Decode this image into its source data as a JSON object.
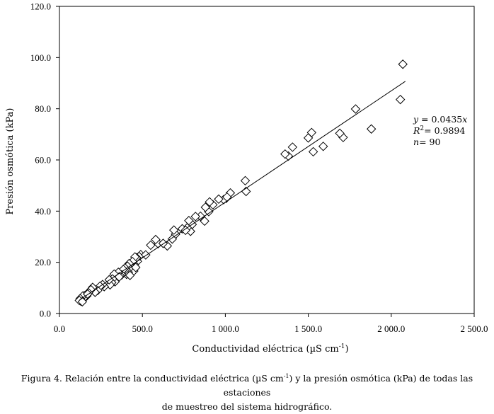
{
  "chart_data": {
    "type": "scatter",
    "xlabel_main": "Conductividad eléctrica (µS cm",
    "xlabel_sup": "-1",
    "xlabel_end": ")",
    "ylabel": "Presión osmótica (kPa)",
    "xlim": [
      0,
      2500
    ],
    "ylim": [
      0,
      120
    ],
    "x_ticks": [
      0,
      500,
      1000,
      1500,
      2000,
      2500
    ],
    "x_tick_labels": [
      "0.0",
      "500.0",
      "1 000.0",
      "1 500.0",
      "2 000.0",
      "2 500.0"
    ],
    "y_ticks": [
      0,
      20,
      40,
      60,
      80,
      100,
      120
    ],
    "y_tick_labels": [
      "0.0",
      "20.0",
      "40.0",
      "60.0",
      "80.0",
      "100.0",
      "120.0"
    ],
    "marker": "diamond-open",
    "trendline": {
      "slope": 0.0435,
      "x_range": [
        120,
        2085
      ]
    },
    "annotation": {
      "eq_y": "y",
      "eq_text": " =  0.0435",
      "eq_x": "x",
      "r2_r": "R",
      "r2_sup": "2",
      "r2_text": "= 0.9894",
      "n_n": "n",
      "n_text": "= 90"
    },
    "points": [
      [
        2070,
        97.4
      ],
      [
        2055,
        83.6
      ],
      [
        1880,
        72.1
      ],
      [
        1785,
        79.9
      ],
      [
        1710,
        68.8
      ],
      [
        1690,
        70.4
      ],
      [
        1590,
        65.3
      ],
      [
        1530,
        63.2
      ],
      [
        1520,
        70.7
      ],
      [
        1500,
        68.6
      ],
      [
        1405,
        65.0
      ],
      [
        1380,
        61.5
      ],
      [
        1360,
        62.3
      ],
      [
        1125,
        47.7
      ],
      [
        1120,
        51.9
      ],
      [
        1030,
        47.1
      ],
      [
        1005,
        45.0
      ],
      [
        990,
        44.5
      ],
      [
        925,
        42.5
      ],
      [
        905,
        43.6
      ],
      [
        900,
        39.8
      ],
      [
        880,
        41.5
      ],
      [
        875,
        36.1
      ],
      [
        850,
        38.0
      ],
      [
        820,
        37.9
      ],
      [
        800,
        34.8
      ],
      [
        790,
        32.1
      ],
      [
        780,
        36.3
      ],
      [
        770,
        33.5
      ],
      [
        740,
        33.1
      ],
      [
        700,
        31.0
      ],
      [
        690,
        32.6
      ],
      [
        680,
        29.1
      ],
      [
        650,
        26.4
      ],
      [
        595,
        27.3
      ],
      [
        580,
        28.9
      ],
      [
        550,
        26.7
      ],
      [
        490,
        23.0
      ],
      [
        480,
        22.3
      ],
      [
        470,
        20.4
      ],
      [
        465,
        21.8
      ],
      [
        455,
        22.1
      ],
      [
        450,
        19.2
      ],
      [
        448,
        16.6
      ],
      [
        440,
        20.3
      ],
      [
        430,
        18.2
      ],
      [
        420,
        19.5
      ],
      [
        415,
        16.1
      ],
      [
        410,
        18.5
      ],
      [
        405,
        15.3
      ],
      [
        400,
        17.3
      ],
      [
        395,
        17.8
      ],
      [
        385,
        17.2
      ],
      [
        375,
        15.1
      ],
      [
        365,
        14.9
      ],
      [
        355,
        16.1
      ],
      [
        345,
        14.1
      ],
      [
        335,
        12.4
      ],
      [
        330,
        15.4
      ],
      [
        320,
        13.5
      ],
      [
        315,
        12.1
      ],
      [
        305,
        11.2
      ],
      [
        300,
        13.2
      ],
      [
        270,
        10.5
      ],
      [
        260,
        11.3
      ],
      [
        245,
        10.7
      ],
      [
        230,
        9.0
      ],
      [
        215,
        8.3
      ],
      [
        200,
        10.2
      ],
      [
        190,
        9.3
      ],
      [
        175,
        8.1
      ],
      [
        165,
        6.9
      ],
      [
        160,
        7.3
      ],
      [
        155,
        6.4
      ],
      [
        150,
        7.0
      ],
      [
        145,
        6.0
      ],
      [
        140,
        6.8
      ],
      [
        130,
        4.8
      ],
      [
        125,
        5.8
      ],
      [
        120,
        5.1
      ],
      [
        138,
        4.6
      ],
      [
        170,
        7.6
      ],
      [
        360,
        14.3
      ],
      [
        425,
        14.9
      ],
      [
        460,
        18.0
      ],
      [
        520,
        22.9
      ],
      [
        625,
        27.4
      ],
      [
        760,
        32.5
      ],
      [
        960,
        44.7
      ],
      [
        1010,
        45.5
      ]
    ]
  },
  "caption": {
    "line1_a": "Figura 4. Relación entre la conductividad eléctrica (µS cm",
    "line1_sup": "-1",
    "line1_b": ") y la presión osmótica (kPa) de todas las estaciones",
    "line2": "de muestreo del sistema hidrográfico."
  }
}
